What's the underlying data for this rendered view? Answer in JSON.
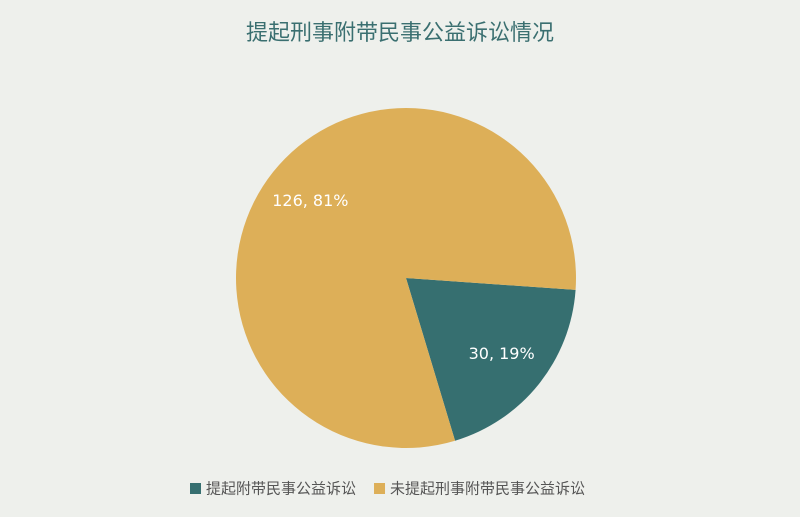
{
  "chart_data": {
    "type": "pie",
    "title": "提起刑事附带民事公益诉讼情况",
    "categories": [
      "提起附带民事公益诉讼",
      "未提起刑事附带民事公益诉讼"
    ],
    "values": [
      30,
      126
    ],
    "value_labels": [
      "30, 19%",
      "126, 81%"
    ],
    "colors": [
      "#366f70",
      "#ddaf58"
    ],
    "legend": "bottom"
  }
}
